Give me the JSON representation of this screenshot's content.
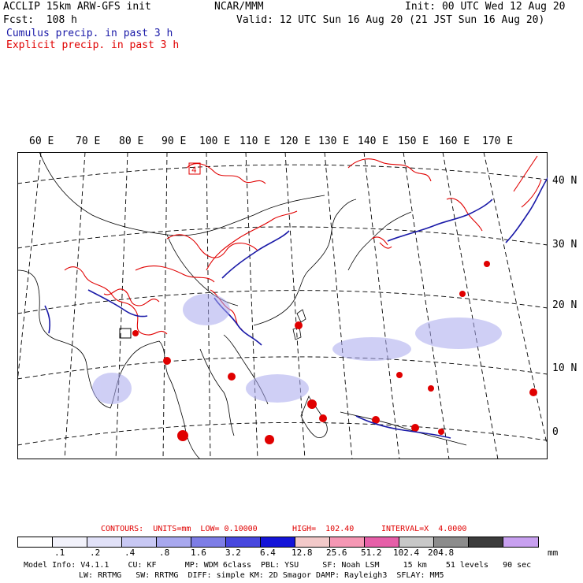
{
  "header": {
    "left1": "ACCLIP 15km ARW-GFS init",
    "center1": "NCAR/MMM",
    "right1": "Init: 00 UTC Wed 12 Aug 20",
    "left2": "Fcst:  108 h",
    "right2": "Valid: 12 UTC Sun 16 Aug 20 (21 JST Sun 16 Aug 20)",
    "cumulus": "Cumulus precip. in past 3 h",
    "explicit": "Explicit precip. in past 3 h"
  },
  "map": {
    "lon_labels": [
      "60 E",
      "70 E",
      "80 E",
      "90 E",
      "100 E",
      "110 E",
      "120 E",
      "130 E",
      "140 E",
      "150 E",
      "160 E",
      "170 E"
    ],
    "lat_labels": [
      "40 N",
      "30 N",
      "20 N",
      "10 N",
      "0"
    ],
    "station_label": "4",
    "colors": {
      "cumulus": "#1a1aa8",
      "explicit": "#e00000",
      "coast": "#000000",
      "grid": "#000000"
    }
  },
  "legend": {
    "contours": "CONTOURS:  UNITS=mm  LOW= 0.10000",
    "high": "HIGH=  102.40",
    "interval": "INTERVAL=X  4.0000",
    "swatch_colors": [
      "#ffffff",
      "#f2f2fb",
      "#e1e1f8",
      "#c8c8f4",
      "#a8a8ee",
      "#7d7de6",
      "#4747de",
      "#1414d8",
      "#f2c9c9",
      "#f597b4",
      "#e65fa8",
      "#c8c8c8",
      "#8c8c8c",
      "#3c3c3c",
      "#c8a0f0"
    ],
    "ticks": [
      ".1",
      ".2",
      ".4",
      ".8",
      "1.6",
      "3.2",
      "6.4",
      "12.8",
      "25.6",
      "51.2",
      "102.4",
      "204.8"
    ],
    "unit": "mm"
  },
  "model_info": {
    "line1": "Model Info: V4.1.1    CU: KF      MP: WDM 6class  PBL: YSU     SF: Noah LSM     15 km    51 levels   90 sec",
    "line2": "LW: RRTMG   SW: RRTMG  DIFF: simple KM: 2D Smagor DAMP: Rayleigh3  SFLAY: MM5"
  }
}
